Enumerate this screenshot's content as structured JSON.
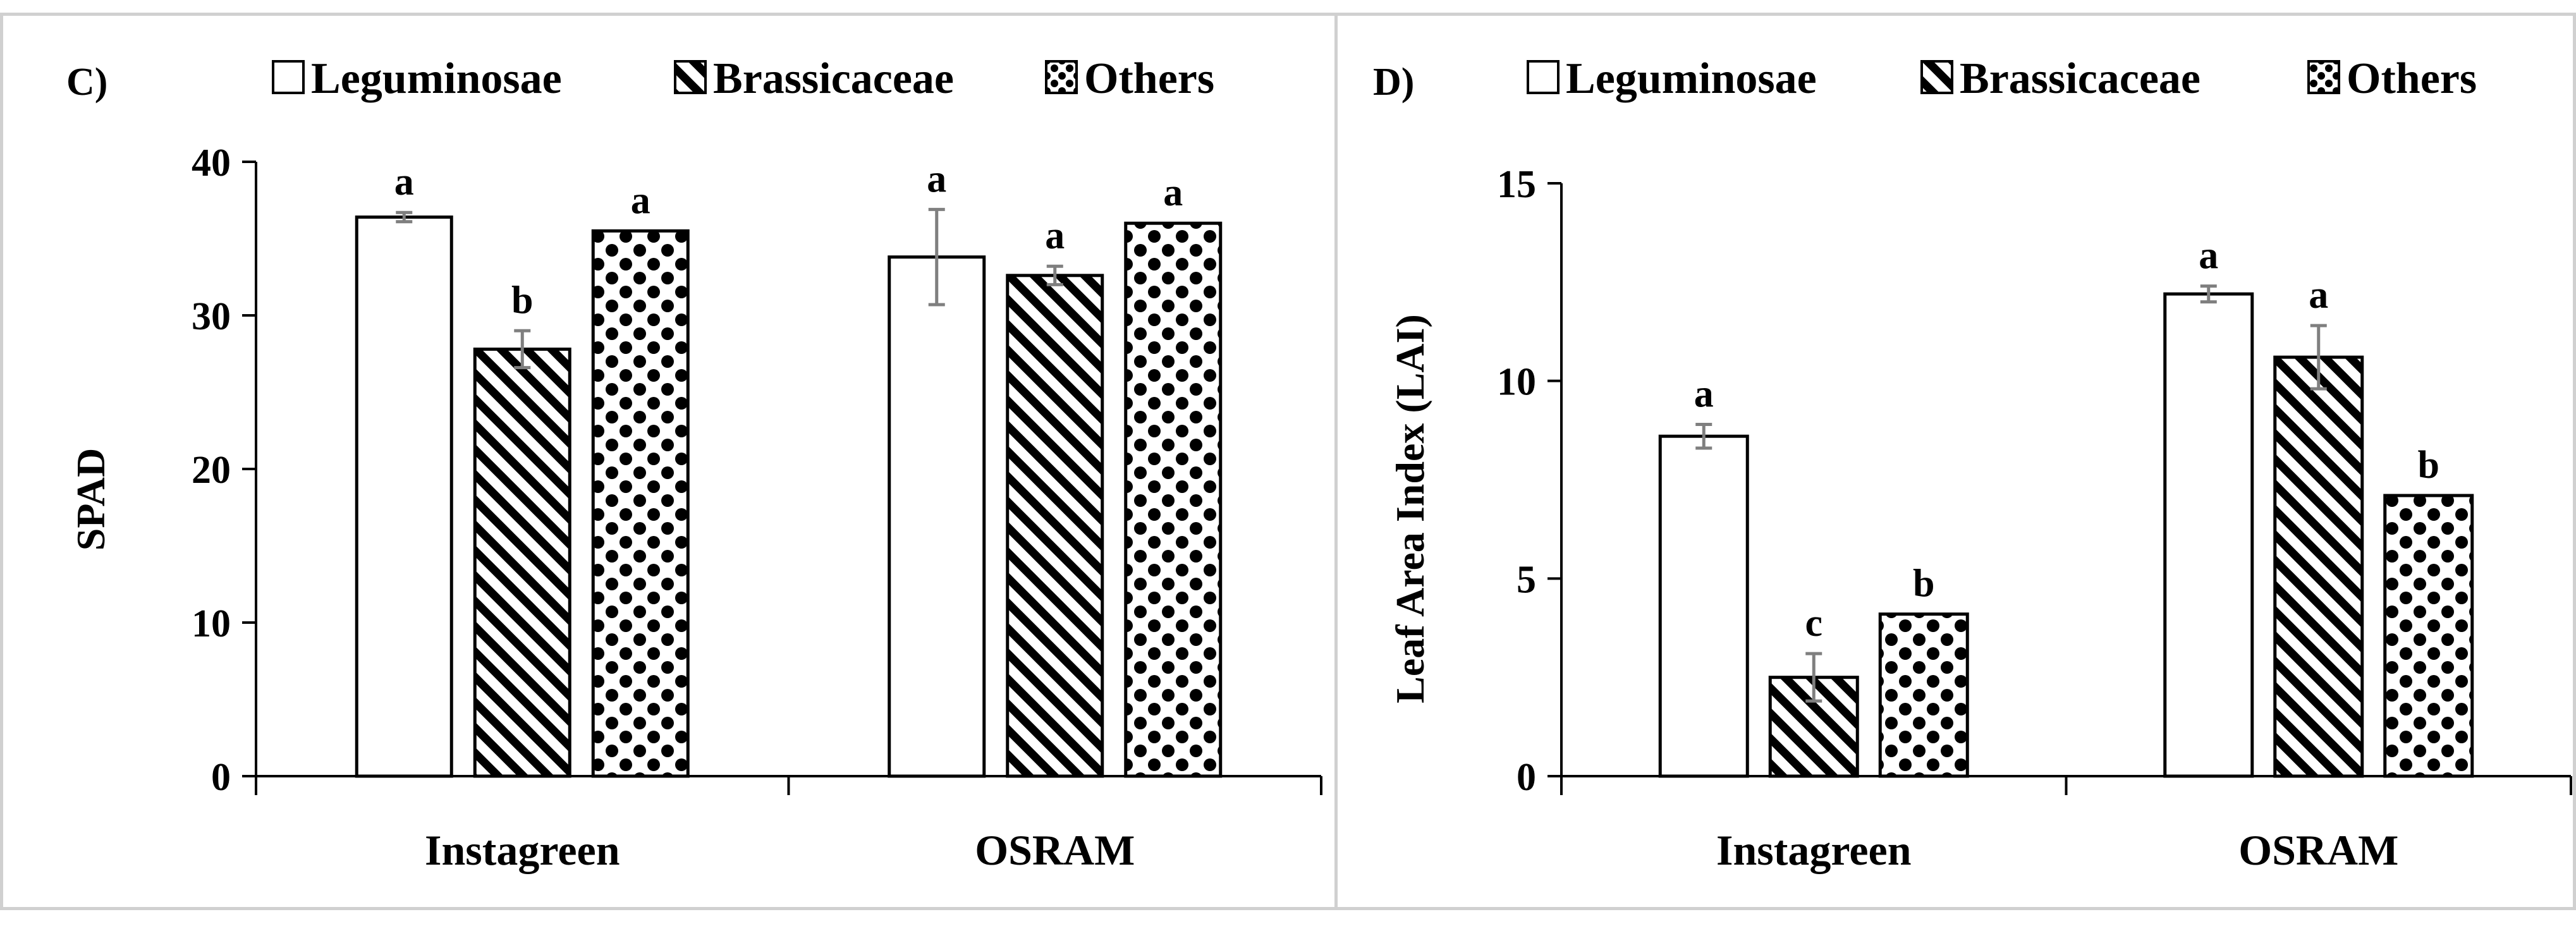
{
  "chart_data": [
    {
      "type": "bar",
      "panel_label": "C)",
      "title": "",
      "xlabel": "",
      "ylabel": "SPAD",
      "ylim": [
        0,
        40
      ],
      "yticks": [
        "0",
        "10",
        "20",
        "30",
        "40"
      ],
      "categories": [
        "Instagreen",
        "OSRAM"
      ],
      "legend": [
        "Leguminosae",
        "Brassicaceae",
        "Others"
      ],
      "legend_position": "top",
      "series": [
        {
          "name": "Leguminosae",
          "pattern": "open",
          "values": [
            36.4,
            33.8
          ],
          "errors": [
            0.3,
            3.1
          ],
          "letters": [
            "a",
            "a"
          ]
        },
        {
          "name": "Brassicaceae",
          "pattern": "diagonal-stripes",
          "values": [
            27.8,
            32.6
          ],
          "errors": [
            1.2,
            0.6
          ],
          "letters": [
            "b",
            "a"
          ]
        },
        {
          "name": "Others",
          "pattern": "dots",
          "values": [
            35.5,
            36.0
          ],
          "errors": [
            0,
            0
          ],
          "letters": [
            "a",
            "a"
          ]
        }
      ]
    },
    {
      "type": "bar",
      "panel_label": "D)",
      "title": "",
      "xlabel": "",
      "ylabel": "Leaf Area Index (LAI)",
      "ylim": [
        0,
        15
      ],
      "yticks": [
        "0",
        "5",
        "10",
        "15"
      ],
      "categories": [
        "Instagreen",
        "OSRAM"
      ],
      "legend": [
        "Leguminosae",
        "Brassicaceae",
        "Others"
      ],
      "legend_position": "top",
      "series": [
        {
          "name": "Leguminosae",
          "pattern": "open",
          "values": [
            8.6,
            12.2
          ],
          "errors": [
            0.3,
            0.2
          ],
          "letters": [
            "a",
            "a"
          ]
        },
        {
          "name": "Brassicaceae",
          "pattern": "diagonal-stripes",
          "values": [
            2.5,
            10.6
          ],
          "errors": [
            0.6,
            0.8
          ],
          "letters": [
            "c",
            "a"
          ]
        },
        {
          "name": "Others",
          "pattern": "dots",
          "values": [
            4.1,
            7.1
          ],
          "errors": [
            0,
            0
          ],
          "letters": [
            "b",
            "b"
          ]
        }
      ]
    }
  ],
  "colors": {
    "bar_stroke": "#000000",
    "axis": "#000000",
    "error_bar": "#7f7f7f",
    "panel_border": "#d0d0d0"
  }
}
